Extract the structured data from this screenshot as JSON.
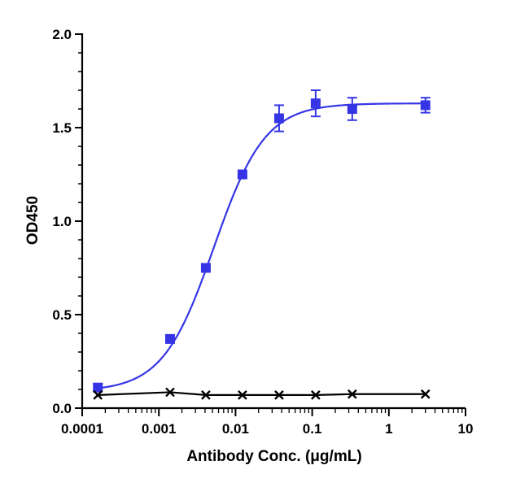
{
  "chart_data": {
    "type": "scatter",
    "title": "",
    "xlabel": "Antibody Conc. (μg/mL)",
    "ylabel": "OD450",
    "x_scale": "log",
    "xlim": [
      0.0001,
      10
    ],
    "ylim": [
      0.0,
      2.0
    ],
    "x_ticks": [
      {
        "value": 0.0001,
        "label": "0.0001"
      },
      {
        "value": 0.001,
        "label": "0.001"
      },
      {
        "value": 0.01,
        "label": "0.01"
      },
      {
        "value": 0.1,
        "label": "0.1"
      },
      {
        "value": 1,
        "label": "1"
      },
      {
        "value": 10,
        "label": "10"
      }
    ],
    "y_ticks": [
      {
        "value": 0.0,
        "label": "0.0"
      },
      {
        "value": 0.5,
        "label": "0.5"
      },
      {
        "value": 1.0,
        "label": "1.0"
      },
      {
        "value": 1.5,
        "label": "1.5"
      },
      {
        "value": 2.0,
        "label": "2.0"
      }
    ],
    "grid": false,
    "legend": "none",
    "series": [
      {
        "marker": "square",
        "color": "#3535e6",
        "x": [
          0.00016,
          0.0014,
          0.0041,
          0.0123,
          0.037,
          0.111,
          0.333,
          3.0
        ],
        "y": [
          0.11,
          0.37,
          0.75,
          1.25,
          1.55,
          1.63,
          1.6,
          1.62
        ],
        "error": [
          0.02,
          0.01,
          0.01,
          0.01,
          0.07,
          0.07,
          0.06,
          0.04
        ],
        "fit": "4PL"
      },
      {
        "marker": "x",
        "color": "#000000",
        "x": [
          0.00016,
          0.0014,
          0.0041,
          0.0123,
          0.037,
          0.111,
          0.333,
          3.0
        ],
        "y": [
          0.07,
          0.085,
          0.07,
          0.07,
          0.07,
          0.07,
          0.075,
          0.075
        ],
        "fit": "line"
      }
    ]
  }
}
